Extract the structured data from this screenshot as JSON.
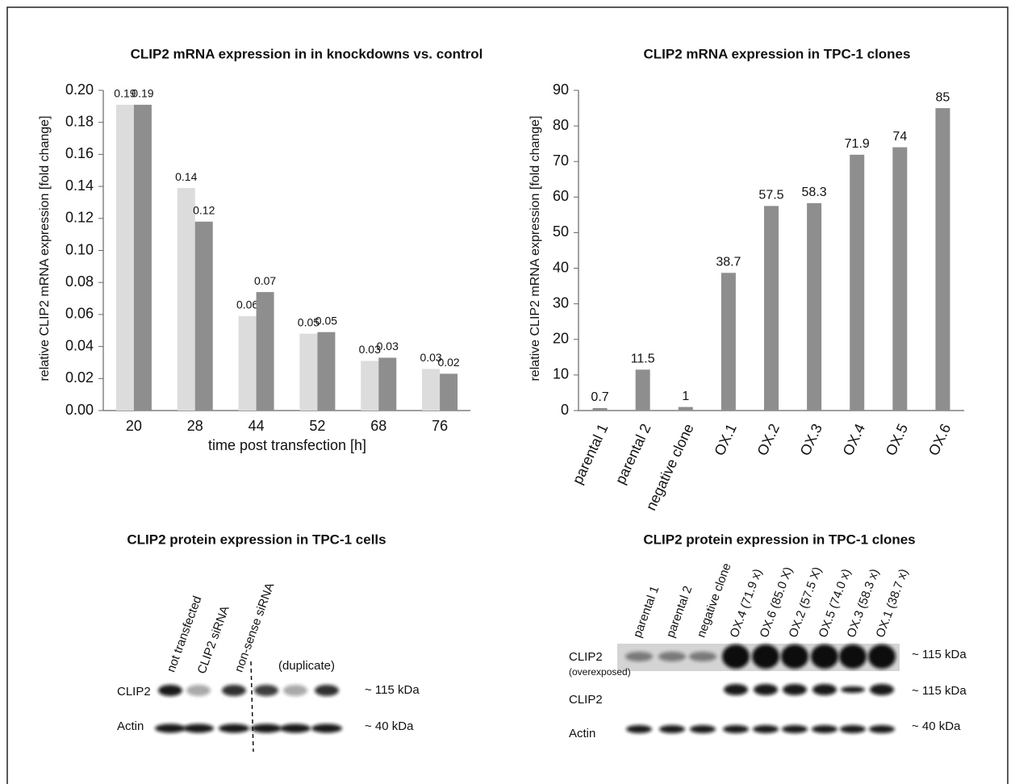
{
  "chart_data": [
    {
      "type": "bar",
      "title": "CLIP2 mRNA expression in in knockdowns vs. control",
      "xlabel": "time post transfection [h]",
      "ylabel": "relative CLIP2 mRNA expression [fold change]",
      "categories": [
        "20",
        "28",
        "44",
        "52",
        "68",
        "76"
      ],
      "series": [
        {
          "color": "#dcdcdc",
          "values": [
            0.191,
            0.139,
            0.059,
            0.048,
            0.031,
            0.026
          ],
          "value_labels": [
            "0.19",
            "0.14",
            "0.06",
            "0.05",
            "0.03",
            "0.03"
          ]
        },
        {
          "color": "#8e8e8e",
          "values": [
            0.191,
            0.118,
            0.074,
            0.049,
            0.033,
            0.023
          ],
          "value_labels": [
            "0.19",
            "0.12",
            "0.07",
            "0.05",
            "0.03",
            "0.02"
          ]
        }
      ],
      "ylim": [
        0,
        0.2
      ],
      "yticks": [
        {
          "value": 0,
          "label": "0.00"
        },
        {
          "value": 0.02,
          "label": "0.02"
        },
        {
          "value": 0.04,
          "label": "0.04"
        },
        {
          "value": 0.06,
          "label": "0.06"
        },
        {
          "value": 0.08,
          "label": "0.08"
        },
        {
          "value": 0.1,
          "label": "0.10"
        },
        {
          "value": 0.12,
          "label": "0.12"
        },
        {
          "value": 0.14,
          "label": "0.14"
        },
        {
          "value": 0.16,
          "label": "0.16"
        },
        {
          "value": 0.18,
          "label": "0.18"
        },
        {
          "value": 0.2,
          "label": "0.20"
        }
      ],
      "grid": false
    },
    {
      "type": "bar",
      "title": "CLIP2 mRNA expression in TPC-1 clones",
      "ylabel": "relative CLIP2 mRNA expression [fold change]",
      "categories": [
        "parental 1",
        "parental 2",
        "negative clone",
        "OX.1",
        "OX.2",
        "OX.3",
        "OX.4",
        "OX.5",
        "OX.6"
      ],
      "series": [
        {
          "color": "#8e8e8e",
          "values": [
            0.7,
            11.5,
            1,
            38.7,
            57.5,
            58.3,
            71.9,
            74,
            85
          ]
        }
      ],
      "ylim": [
        0,
        90
      ],
      "yticks": [
        0,
        10,
        20,
        30,
        40,
        50,
        60,
        70,
        80,
        90
      ],
      "grid": false
    }
  ],
  "blots": [
    {
      "title": "CLIP2 protein expression in TPC-1 cells",
      "lanes": [
        "not transfected",
        "CLIP2 siRNA",
        "non-sense siRNA",
        "(duplicate)"
      ],
      "rows": [
        "CLIP2",
        "Actin"
      ],
      "sizes": [
        "~ 115 kDa",
        "~ 40 kDa"
      ]
    },
    {
      "title": "CLIP2 protein expression in TPC-1 clones",
      "lanes": [
        "parental 1",
        "parental 2",
        "negative clone",
        "OX.4 (71.9 x)",
        "OX.6 (85.0 X)",
        "OX.2 (57.5 X)",
        "OX.5 (74.0 x)",
        "OX.3 (58.3 x)",
        "OX.1 (38.7 x)"
      ],
      "rows": [
        "CLIP2",
        "CLIP2",
        "Actin"
      ],
      "note": "(overexposed)",
      "sizes": [
        "~ 115 kDa",
        "~ 115 kDa",
        "~ 40 kDa"
      ]
    }
  ]
}
